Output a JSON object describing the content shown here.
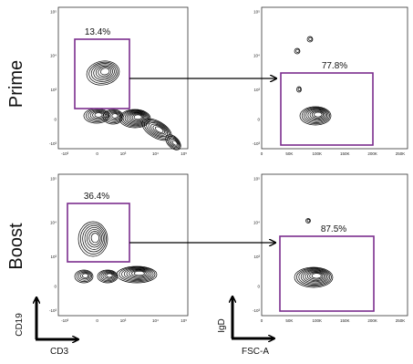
{
  "chart_data": {
    "type": "contour",
    "rows": [
      {
        "label": "Prime",
        "left_gate_percent": "13.4%",
        "right_gate_percent": "77.8%"
      },
      {
        "label": "Boost",
        "left_gate_percent": "36.4%",
        "right_gate_percent": "87.5%"
      }
    ],
    "left_panels": {
      "xlabel": "CD3",
      "ylabel": "CD19",
      "x_ticks": [
        "-10³",
        "0",
        "10³",
        "10⁴",
        "10⁵"
      ],
      "y_ticks": [
        "10⁵",
        "10⁴",
        "10³",
        "0",
        "-10³"
      ],
      "x_scale": "biexponential",
      "y_scale": "biexponential"
    },
    "right_panels": {
      "xlabel": "FSC-A",
      "ylabel": "IgD",
      "x_ticks": [
        "0",
        "50K",
        "100K",
        "150K",
        "200K",
        "250K"
      ],
      "y_ticks": [
        "10⁵",
        "10⁴",
        "10³",
        "0",
        "-10³"
      ],
      "x_scale": "linear",
      "xlim": [
        0,
        262144
      ],
      "y_scale": "biexponential"
    },
    "gate_color": "#7b2d8e",
    "contour_color": "#000000"
  }
}
